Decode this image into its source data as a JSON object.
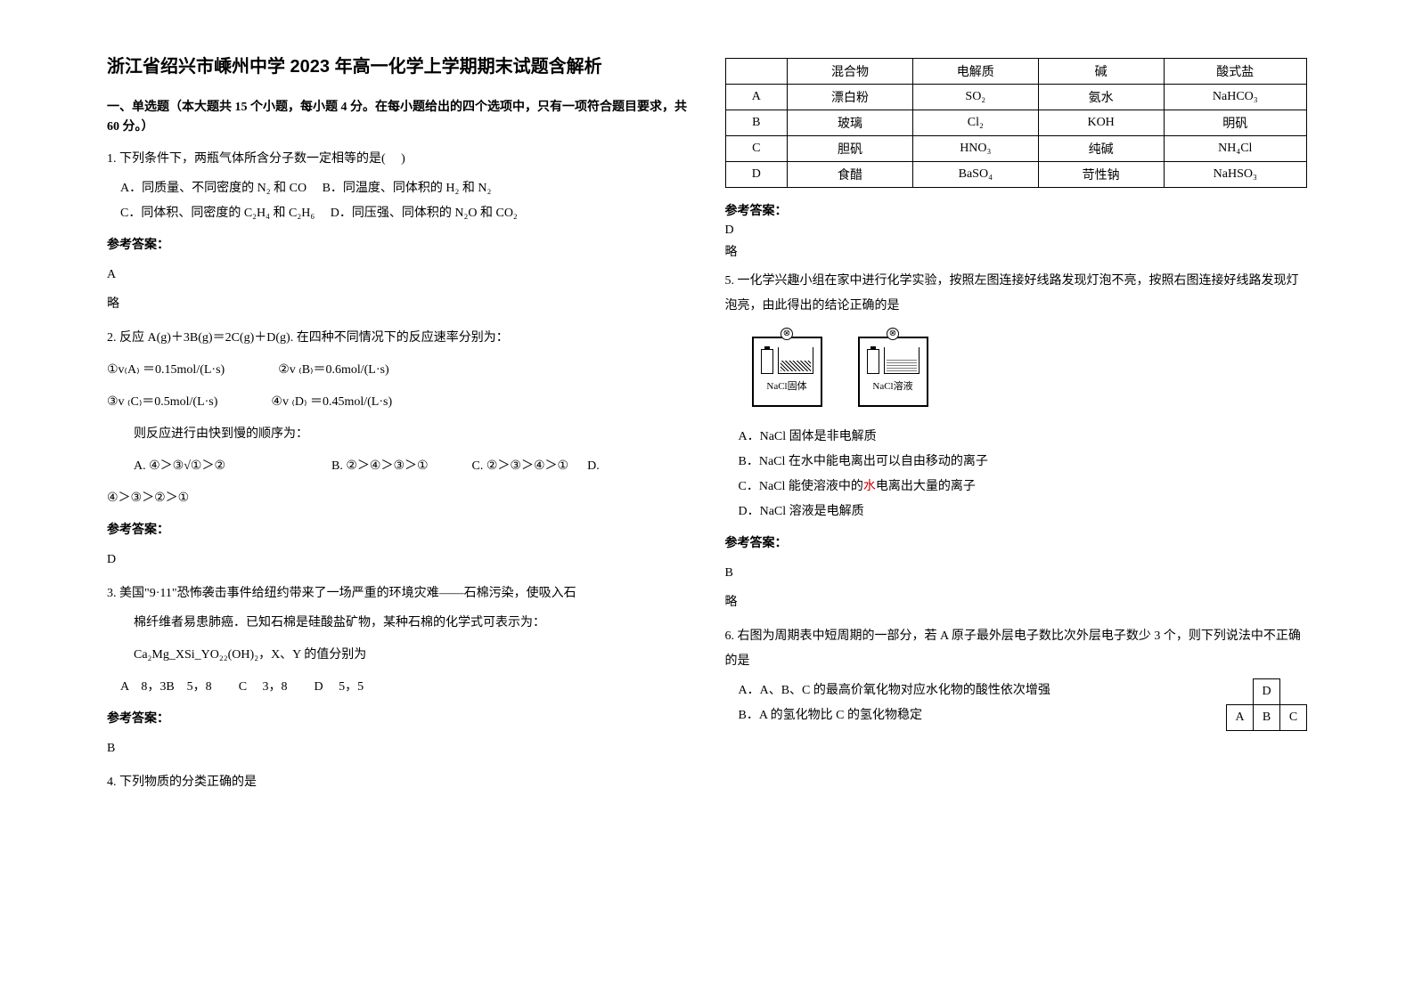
{
  "title": "浙江省绍兴市嵊州中学 2023 年高一化学上学期期末试题含解析",
  "section1_header": "一、单选题（本大题共 15 个小题，每小题 4 分。在每小题给出的四个选项中，只有一项符合题目要求，共 60 分。）",
  "q1": {
    "text": "1. 下列条件下，两瓶气体所含分子数一定相等的是(　 )",
    "optA": "A．同质量、不同密度的 N₂ 和 CO",
    "optB": "B．同温度、同体积的 H₂ 和 N₂",
    "optC": "C．同体积、同密度的 C₂H₄ 和 C₂H₆",
    "optD": "D．同压强、同体积的 N₂O 和 CO₂",
    "answer_label": "参考答案：",
    "answer": "A",
    "omit": "略"
  },
  "q2": {
    "text": "2. 反应 A(g)＋3B(g)＝2C(g)＋D(g). 在四种不同情况下的反应速率分别为：",
    "l1a": "①v₍A₎ ＝0.15mol/(L·s)",
    "l1b": "②v ₍B₎＝0.6mol/(L·s)",
    "l2a": "③v ₍C₎＝0.5mol/(L·s)",
    "l2b": "④v ₍D₎ ＝0.45mol/(L·s)",
    "prompt": "则反应进行由快到慢的顺序为：",
    "optA": "A. ④＞③√①＞②",
    "optB": "B. ②＞④＞③＞①",
    "optC": "C. ②＞③＞④＞①",
    "optD_prefix": "D.",
    "optD_rest": "④＞③＞②＞①",
    "answer_label": "参考答案：",
    "answer": "D"
  },
  "q3": {
    "text1": "3. 美国\"9·11\"恐怖袭击事件给纽约带来了一场严重的环境灾难——石棉污染，使吸入石",
    "text2": "棉纤维者易患肺癌．已知石棉是硅酸盐矿物，某种石棉的化学式可表示为：",
    "formula": "Ca₂Mg_XSi_YO₂₂(OH)₂，X、Y 的值分别为",
    "optA": "A　8，3B　5，8",
    "optC": "C　 3，8",
    "optD": "D　 5，5",
    "answer_label": "参考答案：",
    "answer": "B"
  },
  "q4": {
    "text": "4. 下列物质的分类正确的是",
    "table": {
      "headers": [
        "",
        "混合物",
        "电解质",
        "碱",
        "酸式盐"
      ],
      "rows": [
        [
          "A",
          "漂白粉",
          "SO₂",
          "氨水",
          "NaHCO₃"
        ],
        [
          "B",
          "玻璃",
          "Cl₂",
          "KOH",
          "明矾"
        ],
        [
          "C",
          "胆矾",
          "HNO₃",
          "纯碱",
          "NH₄Cl"
        ],
        [
          "D",
          "食醋",
          "BaSO₄",
          "苛性钠",
          "NaHSO₃"
        ]
      ]
    },
    "answer_label": "参考答案：",
    "answer": "D",
    "omit": "略"
  },
  "q5": {
    "text": "5. 一化学兴趣小组在家中进行化学实验，按照左图连接好线路发现灯泡不亮，按照右图连接好线路发现灯泡亮，由此得出的结论正确的是",
    "fig_left": "NaCl固体",
    "fig_right": "NaCl溶液",
    "optA": "A．NaCl 固体是非电解质",
    "optB": "B．NaCl 在水中能电离出可以自由移动的离子",
    "optC_pre": "C．NaCl 能使溶液中的",
    "optC_red": "水",
    "optC_post": "电离出大量的离子",
    "optD": "D．NaCl 溶液是电解质",
    "answer_label": "参考答案：",
    "answer": "B",
    "omit": "略"
  },
  "q6": {
    "text": "6. 右图为周期表中短周期的一部分，若 A 原子最外层电子数比次外层电子数少 3 个，则下列说法中不正确的是",
    "grid": {
      "d": "D",
      "a": "A",
      "b": "B",
      "c": "C"
    },
    "optA": "A．A、B、C 的最高价氧化物对应水化物的酸性依次增强",
    "optB": "B．A 的氢化物比 C 的氢化物稳定"
  }
}
